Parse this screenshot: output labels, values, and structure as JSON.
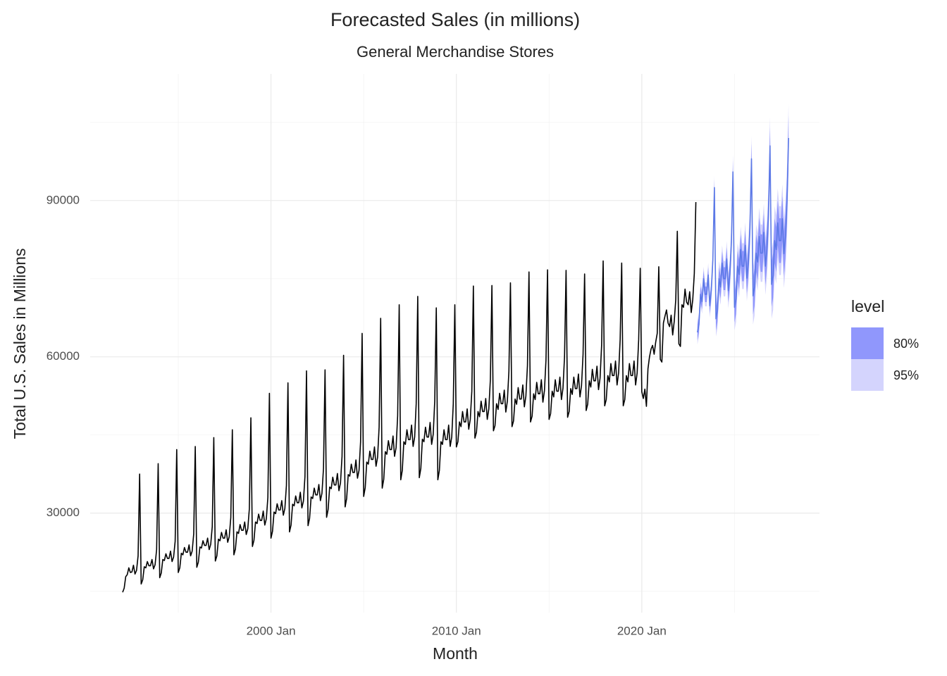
{
  "chart_data": {
    "type": "line",
    "title": "Forecasted Sales (in millions)",
    "subtitle": "General Merchandise Stores",
    "x_label": "Month",
    "y_label": "Total U.S. Sales in Millions",
    "legend_title": "level",
    "xlim": [
      "1990 Apr",
      "2029 Aug"
    ],
    "xticks": [
      "2000 Jan",
      "2010 Jan",
      "2020 Jan"
    ],
    "x_minor_ticks": [
      "1995 Jan",
      "2005 Jan",
      "2015 Jan",
      "2025 Jan"
    ],
    "ylim": [
      10900,
      114300
    ],
    "yticks": [
      30000,
      60000,
      90000
    ],
    "y_minor_ticks": [
      15000,
      45000,
      75000,
      105000
    ],
    "grid": true,
    "color": "#000000",
    "x": [
      "1992 Jan",
      "1992 Feb",
      "1992 Mar",
      "1992 Apr",
      "1992 May",
      "1992 Jun",
      "1992 Jul",
      "1992 Aug",
      "1992 Sep",
      "1992 Oct",
      "1992 Nov",
      "1992 Dec",
      "1993 Jan",
      "1993 Feb",
      "1993 Mar",
      "1993 Apr",
      "1993 May",
      "1993 Jun",
      "1993 Jul",
      "1993 Aug",
      "1993 Sep",
      "1993 Oct",
      "1993 Nov",
      "1993 Dec",
      "1994 Jan",
      "1994 Feb",
      "1994 Mar",
      "1994 Apr",
      "1994 May",
      "1994 Jun",
      "1994 Jul",
      "1994 Aug",
      "1994 Sep",
      "1994 Oct",
      "1994 Nov",
      "1994 Dec",
      "1995 Jan",
      "1995 Feb",
      "1995 Mar",
      "1995 Apr",
      "1995 May",
      "1995 Jun",
      "1995 Jul",
      "1995 Aug",
      "1995 Sep",
      "1995 Oct",
      "1995 Nov",
      "1995 Dec",
      "1996 Jan",
      "1996 Feb",
      "1996 Mar",
      "1996 Apr",
      "1996 May",
      "1996 Jun",
      "1996 Jul",
      "1996 Aug",
      "1996 Sep",
      "1996 Oct",
      "1996 Nov",
      "1996 Dec",
      "1997 Jan",
      "1997 Feb",
      "1997 Mar",
      "1997 Apr",
      "1997 May",
      "1997 Jun",
      "1997 Jul",
      "1997 Aug",
      "1997 Sep",
      "1997 Oct",
      "1997 Nov",
      "1997 Dec",
      "1998 Jan",
      "1998 Feb",
      "1998 Mar",
      "1998 Apr",
      "1998 May",
      "1998 Jun",
      "1998 Jul",
      "1998 Aug",
      "1998 Sep",
      "1998 Oct",
      "1998 Nov",
      "1998 Dec",
      "1999 Jan",
      "1999 Feb",
      "1999 Mar",
      "1999 Apr",
      "1999 May",
      "1999 Jun",
      "1999 Jul",
      "1999 Aug",
      "1999 Sep",
      "1999 Oct",
      "1999 Nov",
      "1999 Dec",
      "2000 Jan",
      "2000 Feb",
      "2000 Mar",
      "2000 Apr",
      "2000 May",
      "2000 Jun",
      "2000 Jul",
      "2000 Aug",
      "2000 Sep",
      "2000 Oct",
      "2000 Nov",
      "2000 Dec",
      "2001 Jan",
      "2001 Feb",
      "2001 Mar",
      "2001 Apr",
      "2001 May",
      "2001 Jun",
      "2001 Jul",
      "2001 Aug",
      "2001 Sep",
      "2001 Oct",
      "2001 Nov",
      "2001 Dec",
      "2002 Jan",
      "2002 Feb",
      "2002 Mar",
      "2002 Apr",
      "2002 May",
      "2002 Jun",
      "2002 Jul",
      "2002 Aug",
      "2002 Sep",
      "2002 Oct",
      "2002 Nov",
      "2002 Dec",
      "2003 Jan",
      "2003 Feb",
      "2003 Mar",
      "2003 Apr",
      "2003 May",
      "2003 Jun",
      "2003 Jul",
      "2003 Aug",
      "2003 Sep",
      "2003 Oct",
      "2003 Nov",
      "2003 Dec",
      "2004 Jan",
      "2004 Feb",
      "2004 Mar",
      "2004 Apr",
      "2004 May",
      "2004 Jun",
      "2004 Jul",
      "2004 Aug",
      "2004 Sep",
      "2004 Oct",
      "2004 Nov",
      "2004 Dec",
      "2005 Jan",
      "2005 Feb",
      "2005 Mar",
      "2005 Apr",
      "2005 May",
      "2005 Jun",
      "2005 Jul",
      "2005 Aug",
      "2005 Sep",
      "2005 Oct",
      "2005 Nov",
      "2005 Dec",
      "2006 Jan",
      "2006 Feb",
      "2006 Mar",
      "2006 Apr",
      "2006 May",
      "2006 Jun",
      "2006 Jul",
      "2006 Aug",
      "2006 Sep",
      "2006 Oct",
      "2006 Nov",
      "2006 Dec",
      "2007 Jan",
      "2007 Feb",
      "2007 Mar",
      "2007 Apr",
      "2007 May",
      "2007 Jun",
      "2007 Jul",
      "2007 Aug",
      "2007 Sep",
      "2007 Oct",
      "2007 Nov",
      "2007 Dec",
      "2008 Jan",
      "2008 Feb",
      "2008 Mar",
      "2008 Apr",
      "2008 May",
      "2008 Jun",
      "2008 Jul",
      "2008 Aug",
      "2008 Sep",
      "2008 Oct",
      "2008 Nov",
      "2008 Dec",
      "2009 Jan",
      "2009 Feb",
      "2009 Mar",
      "2009 Apr",
      "2009 May",
      "2009 Jun",
      "2009 Jul",
      "2009 Aug",
      "2009 Sep",
      "2009 Oct",
      "2009 Nov",
      "2009 Dec",
      "2010 Jan",
      "2010 Feb",
      "2010 Mar",
      "2010 Apr",
      "2010 May",
      "2010 Jun",
      "2010 Jul",
      "2010 Aug",
      "2010 Sep",
      "2010 Oct",
      "2010 Nov",
      "2010 Dec",
      "2011 Jan",
      "2011 Feb",
      "2011 Mar",
      "2011 Apr",
      "2011 May",
      "2011 Jun",
      "2011 Jul",
      "2011 Aug",
      "2011 Sep",
      "2011 Oct",
      "2011 Nov",
      "2011 Dec",
      "2012 Jan",
      "2012 Feb",
      "2012 Mar",
      "2012 Apr",
      "2012 May",
      "2012 Jun",
      "2012 Jul",
      "2012 Aug",
      "2012 Sep",
      "2012 Oct",
      "2012 Nov",
      "2012 Dec",
      "2013 Jan",
      "2013 Feb",
      "2013 Mar",
      "2013 Apr",
      "2013 May",
      "2013 Jun",
      "2013 Jul",
      "2013 Aug",
      "2013 Sep",
      "2013 Oct",
      "2013 Nov",
      "2013 Dec",
      "2014 Jan",
      "2014 Feb",
      "2014 Mar",
      "2014 Apr",
      "2014 May",
      "2014 Jun",
      "2014 Jul",
      "2014 Aug",
      "2014 Sep",
      "2014 Oct",
      "2014 Nov",
      "2014 Dec",
      "2015 Jan",
      "2015 Feb",
      "2015 Mar",
      "2015 Apr",
      "2015 May",
      "2015 Jun",
      "2015 Jul",
      "2015 Aug",
      "2015 Sep",
      "2015 Oct",
      "2015 Nov",
      "2015 Dec",
      "2016 Jan",
      "2016 Feb",
      "2016 Mar",
      "2016 Apr",
      "2016 May",
      "2016 Jun",
      "2016 Jul",
      "2016 Aug",
      "2016 Sep",
      "2016 Oct",
      "2016 Nov",
      "2016 Dec",
      "2017 Jan",
      "2017 Feb",
      "2017 Mar",
      "2017 Apr",
      "2017 May",
      "2017 Jun",
      "2017 Jul",
      "2017 Aug",
      "2017 Sep",
      "2017 Oct",
      "2017 Nov",
      "2017 Dec",
      "2018 Jan",
      "2018 Feb",
      "2018 Mar",
      "2018 Apr",
      "2018 May",
      "2018 Jun",
      "2018 Jul",
      "2018 Aug",
      "2018 Sep",
      "2018 Oct",
      "2018 Nov",
      "2018 Dec",
      "2019 Jan",
      "2019 Feb",
      "2019 Mar",
      "2019 Apr",
      "2019 May",
      "2019 Jun",
      "2019 Jul",
      "2019 Aug",
      "2019 Sep",
      "2019 Oct",
      "2019 Nov",
      "2019 Dec",
      "2020 Jan",
      "2020 Feb",
      "2020 Mar",
      "2020 Apr",
      "2020 May",
      "2020 Jun",
      "2020 Jul",
      "2020 Aug",
      "2020 Sep",
      "2020 Oct",
      "2020 Nov",
      "2020 Dec",
      "2021 Jan",
      "2021 Feb",
      "2021 Mar",
      "2021 Apr",
      "2021 May",
      "2021 Jun",
      "2021 Jul",
      "2021 Aug",
      "2021 Sep",
      "2021 Oct",
      "2021 Nov",
      "2021 Dec",
      "2022 Jan",
      "2022 Feb",
      "2022 Mar",
      "2022 Apr",
      "2022 May",
      "2022 Jun",
      "2022 Jul",
      "2022 Aug",
      "2022 Sep",
      "2022 Oct",
      "2022 Nov",
      "2022 Dec"
    ],
    "values": [
      14800,
      15600,
      17800,
      18200,
      19500,
      18600,
      18700,
      20000,
      18300,
      19000,
      21800,
      37500,
      16400,
      17200,
      19700,
      19500,
      20700,
      19900,
      19900,
      21100,
      19300,
      20100,
      23000,
      39500,
      17600,
      18500,
      21100,
      20900,
      22200,
      21300,
      21300,
      22700,
      20700,
      21600,
      24600,
      42200,
      18600,
      19500,
      22300,
      22000,
      23400,
      22500,
      22500,
      23900,
      21800,
      22700,
      26000,
      42800,
      19600,
      20600,
      23500,
      23300,
      24700,
      23800,
      23800,
      25200,
      23000,
      24000,
      27400,
      44500,
      20800,
      21800,
      25000,
      24700,
      26300,
      25200,
      25200,
      26800,
      24400,
      25500,
      29100,
      46000,
      22000,
      23100,
      26400,
      26100,
      27800,
      26700,
      26700,
      28300,
      25900,
      27000,
      30800,
      48300,
      23600,
      24800,
      28300,
      28000,
      29800,
      28600,
      28600,
      30400,
      27700,
      28900,
      33000,
      53000,
      25200,
      26500,
      30200,
      29900,
      31800,
      30600,
      30600,
      32400,
      29600,
      30900,
      35300,
      55000,
      26400,
      27700,
      31700,
      31400,
      33300,
      32000,
      32000,
      34000,
      31000,
      32300,
      37000,
      57300,
      27600,
      29000,
      33100,
      32800,
      34800,
      33500,
      33500,
      35500,
      32400,
      33800,
      38600,
      57500,
      29200,
      30700,
      35000,
      34700,
      36900,
      35400,
      35400,
      37600,
      34300,
      35800,
      40900,
      60300,
      31200,
      32800,
      37400,
      37100,
      39400,
      37800,
      37800,
      40200,
      36700,
      38200,
      43700,
      64500,
      33200,
      34900,
      39800,
      39400,
      41900,
      40300,
      40300,
      42700,
      39000,
      40700,
      46500,
      67400,
      34800,
      36500,
      41800,
      41300,
      43900,
      42200,
      42200,
      44800,
      40900,
      42600,
      48700,
      70000,
      36400,
      38200,
      43700,
      43200,
      46000,
      44100,
      44100,
      46900,
      42800,
      44600,
      51000,
      71600,
      36800,
      38600,
      44200,
      43700,
      46500,
      44600,
      44600,
      47400,
      43200,
      45100,
      51500,
      69400,
      36400,
      38200,
      43700,
      43200,
      46000,
      44100,
      44100,
      46900,
      42800,
      44600,
      51000,
      70000,
      42700,
      43700,
      47500,
      46600,
      49500,
      47500,
      47500,
      50000,
      46100,
      48000,
      53400,
      73600,
      44400,
      45500,
      49500,
      48500,
      51500,
      49500,
      49500,
      52000,
      48000,
      50000,
      55600,
      73700,
      45800,
      46800,
      51000,
      49900,
      53000,
      51000,
      51000,
      53600,
      49400,
      51500,
      57200,
      74200,
      46600,
      47700,
      51900,
      50900,
      54100,
      51900,
      51900,
      54600,
      50400,
      52500,
      58300,
      76300,
      47500,
      48600,
      52900,
      51800,
      55100,
      52900,
      52900,
      55600,
      51300,
      53500,
      59400,
      76700,
      48000,
      49100,
      53400,
      52300,
      55600,
      53400,
      53400,
      56100,
      51800,
      54000,
      60000,
      76600,
      48400,
      49500,
      53900,
      52800,
      56100,
      53900,
      53900,
      56700,
      52300,
      54500,
      60500,
      75900,
      49700,
      50900,
      55400,
      54200,
      57600,
      55400,
      55400,
      58200,
      53700,
      55900,
      62200,
      78400,
      50600,
      51800,
      56400,
      55200,
      58700,
      56400,
      56400,
      59200,
      54600,
      56900,
      63300,
      78000,
      50600,
      51800,
      56400,
      55200,
      58700,
      56400,
      56400,
      59200,
      54600,
      56900,
      63300,
      77000,
      53300,
      52000,
      53800,
      50500,
      57700,
      60000,
      61500,
      62200,
      60500,
      62800,
      64500,
      77300,
      59500,
      59000,
      66500,
      67800,
      69000,
      66500,
      65800,
      68000,
      64200,
      66800,
      71000,
      84100,
      62500,
      62000,
      70000,
      69500,
      73000,
      70500,
      70000,
      72500,
      68500,
      71000,
      76000,
      89700
    ],
    "forecast": {
      "color": "#5b78e6",
      "x": [
        "2023 Jan",
        "2023 Feb",
        "2023 Mar",
        "2023 Apr",
        "2023 May",
        "2023 Jun",
        "2023 Jul",
        "2023 Aug",
        "2023 Sep",
        "2023 Oct",
        "2023 Nov",
        "2023 Dec",
        "2024 Jan",
        "2024 Feb",
        "2024 Mar",
        "2024 Apr",
        "2024 May",
        "2024 Jun",
        "2024 Jul",
        "2024 Aug",
        "2024 Sep",
        "2024 Oct",
        "2024 Nov",
        "2024 Dec",
        "2025 Jan",
        "2025 Feb",
        "2025 Mar",
        "2025 Apr",
        "2025 May",
        "2025 Jun",
        "2025 Jul",
        "2025 Aug",
        "2025 Sep",
        "2025 Oct",
        "2025 Nov",
        "2025 Dec",
        "2026 Jan",
        "2026 Feb",
        "2026 Mar",
        "2026 Apr",
        "2026 May",
        "2026 Jun",
        "2026 Jul",
        "2026 Aug",
        "2026 Sep",
        "2026 Oct",
        "2026 Nov",
        "2026 Dec",
        "2027 Jan",
        "2027 Feb",
        "2027 Mar",
        "2027 Apr",
        "2027 May",
        "2027 Jun",
        "2027 Jul",
        "2027 Aug",
        "2027 Sep",
        "2027 Oct",
        "2027 Nov",
        "2027 Dec"
      ],
      "values": [
        64700,
        66200,
        72000,
        70600,
        75000,
        72000,
        72000,
        75700,
        69800,
        72800,
        78600,
        92500,
        67300,
        68900,
        75000,
        73400,
        78000,
        75000,
        75000,
        78800,
        72700,
        75700,
        81900,
        95500,
        69500,
        71100,
        77400,
        75800,
        80600,
        77400,
        77400,
        81400,
        75100,
        78200,
        84500,
        98000,
        71700,
        73400,
        79900,
        78200,
        83100,
        79900,
        79900,
        83900,
        77400,
        80700,
        87200,
        100500,
        73900,
        75600,
        82300,
        80600,
        85700,
        82300,
        82300,
        86500,
        79800,
        83200,
        89900,
        102000
      ],
      "intervals": [
        {
          "name": "80%",
          "color": "#9097fc",
          "lower": [
            63200,
            64700,
            70500,
            69100,
            73500,
            70500,
            70500,
            74200,
            68300,
            71300,
            77100,
            91000,
            65100,
            66700,
            72800,
            71200,
            75800,
            72800,
            72800,
            76600,
            70500,
            73500,
            79700,
            93300,
            66600,
            68200,
            74500,
            72900,
            77700,
            74500,
            74500,
            78500,
            72200,
            75300,
            81600,
            95100,
            68100,
            69800,
            76300,
            74600,
            79500,
            76300,
            76300,
            80300,
            73800,
            77100,
            83600,
            96900,
            69600,
            71300,
            78000,
            76300,
            81400,
            78000,
            78000,
            82200,
            75500,
            78900,
            85600,
            97700
          ],
          "upper": [
            66200,
            67700,
            73500,
            72100,
            76500,
            73500,
            73500,
            77200,
            71300,
            74300,
            80100,
            94000,
            69500,
            71100,
            77200,
            75600,
            80200,
            77200,
            77200,
            81000,
            74900,
            77900,
            84100,
            97700,
            72400,
            74000,
            80300,
            78700,
            83500,
            80300,
            80300,
            84300,
            78000,
            81100,
            87400,
            100900,
            75300,
            77000,
            83500,
            81800,
            86700,
            83500,
            83500,
            87500,
            81000,
            84300,
            90800,
            104100,
            78200,
            79900,
            86600,
            84900,
            90000,
            86600,
            86600,
            90800,
            84100,
            87500,
            94200,
            106300
          ]
        },
        {
          "name": "95%",
          "color": "#d4d4fd",
          "lower": [
            62400,
            63900,
            69700,
            68300,
            72700,
            69700,
            69700,
            73400,
            67500,
            70500,
            76300,
            90200,
            63900,
            65500,
            71600,
            70000,
            74600,
            71600,
            71600,
            75400,
            69300,
            72300,
            78500,
            92100,
            65100,
            66700,
            73000,
            71400,
            76200,
            73000,
            73000,
            77000,
            70700,
            73800,
            80100,
            93600,
            66200,
            67900,
            74400,
            72700,
            77600,
            74400,
            74400,
            78400,
            71900,
            75200,
            81700,
            95000,
            67300,
            69000,
            75700,
            74000,
            79100,
            75700,
            75700,
            79900,
            73200,
            76600,
            83300,
            95400
          ],
          "upper": [
            67000,
            68500,
            74300,
            72900,
            77300,
            74300,
            74300,
            78000,
            72100,
            75100,
            80900,
            94800,
            70700,
            72300,
            78400,
            76800,
            81400,
            78400,
            78400,
            82200,
            76100,
            79100,
            85300,
            98900,
            73900,
            75500,
            81800,
            80200,
            85000,
            81800,
            81800,
            85800,
            79500,
            82600,
            88900,
            102400,
            77200,
            78900,
            85400,
            83700,
            88600,
            85400,
            85400,
            89400,
            82900,
            86200,
            92700,
            106000,
            80500,
            82200,
            88900,
            87200,
            92300,
            88900,
            88900,
            93100,
            86400,
            89800,
            96500,
            108600
          ]
        }
      ]
    }
  }
}
